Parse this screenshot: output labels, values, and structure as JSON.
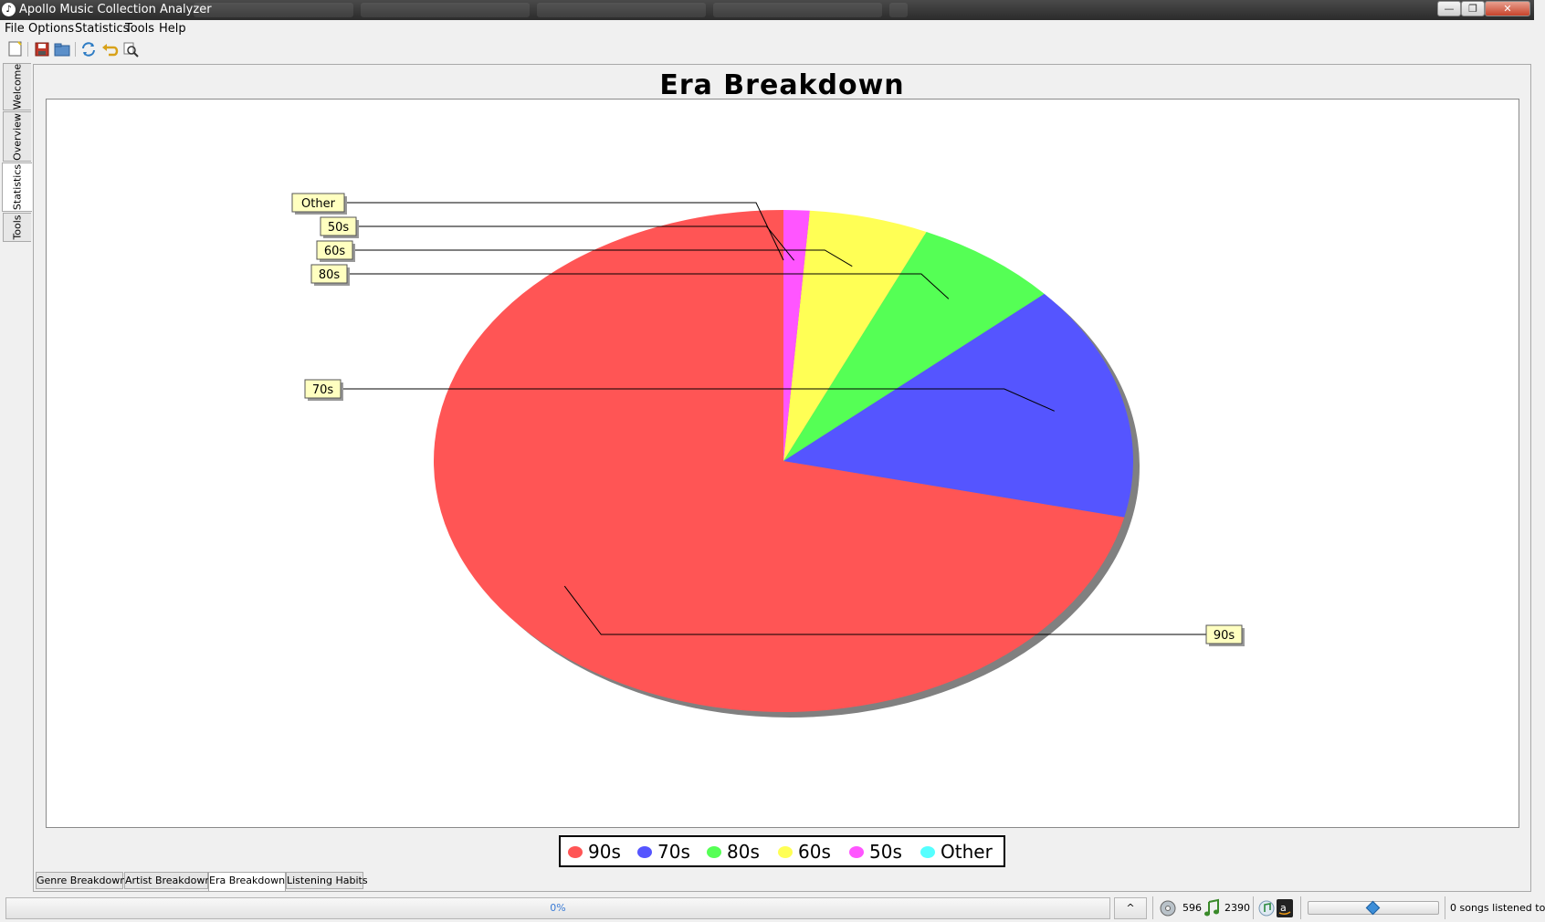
{
  "window": {
    "title": "Apollo Music Collection Analyzer",
    "buttons": {
      "minimize": "—",
      "maximize": "❐",
      "close": "✕"
    }
  },
  "menu": [
    "File",
    "Options",
    "Statistics",
    "Tools",
    "Help"
  ],
  "toolbar": [
    "new-icon",
    "save-icon",
    "open-icon",
    "refresh-icon",
    "undo-icon",
    "search-icon"
  ],
  "side_tabs": [
    "Welcome",
    "Overview",
    "Statistics",
    "Tools"
  ],
  "active_side_tab": "Statistics",
  "chart": {
    "title": "Era Breakdown"
  },
  "chart_data": {
    "type": "pie",
    "title": "Era Breakdown",
    "slices": [
      {
        "label": "90s",
        "value": 71.4,
        "color": "#ff5555"
      },
      {
        "label": "70s",
        "value": 15.2,
        "color": "#5555ff"
      },
      {
        "label": "80s",
        "value": 6.7,
        "color": "#55ff55"
      },
      {
        "label": "60s",
        "value": 5.5,
        "color": "#ffff55"
      },
      {
        "label": "50s",
        "value": 1.2,
        "color": "#ff55ff"
      },
      {
        "label": "Other",
        "value": 0.0,
        "color": "#55ffff"
      }
    ],
    "legend_position": "bottom-center",
    "shadow": true
  },
  "bottom_tabs": [
    "Genre Breakdown",
    "Artist Breakdown",
    "Era Breakdown",
    "Listening Habits"
  ],
  "active_bottom_tab": "Era Breakdown",
  "status": {
    "progress_text": "0%",
    "collapse_label": "^",
    "albums_count": "596",
    "songs_count": "2390",
    "listened_text": "0 songs listened to",
    "volume_fraction": 0.5
  }
}
